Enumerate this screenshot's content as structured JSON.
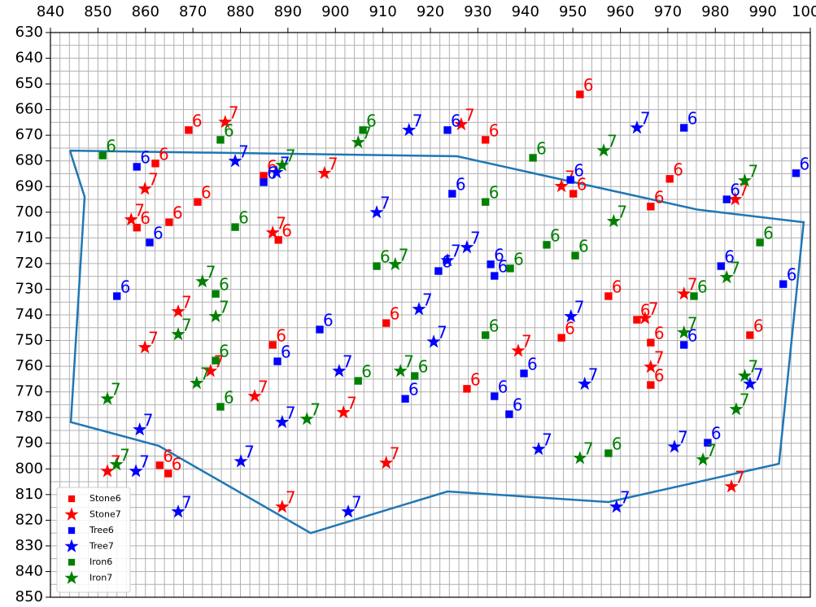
{
  "chart_data": {
    "type": "scatter",
    "xlim": [
      840,
      1000
    ],
    "ylim": [
      850,
      630
    ],
    "xticks": [
      840,
      850,
      860,
      870,
      880,
      890,
      900,
      910,
      920,
      930,
      940,
      950,
      960,
      970,
      980,
      990,
      1000
    ],
    "yticks": [
      630,
      640,
      650,
      660,
      670,
      680,
      690,
      700,
      710,
      720,
      730,
      740,
      750,
      760,
      770,
      780,
      790,
      800,
      810,
      820,
      830,
      840,
      850
    ],
    "xgrid": [
      840,
      842,
      844,
      846,
      848,
      850,
      852,
      854,
      856,
      858,
      860,
      862,
      864,
      866,
      868,
      870,
      872,
      874,
      876,
      878,
      880,
      882,
      884,
      886,
      888,
      890,
      892,
      894,
      896,
      898,
      900,
      902,
      904,
      906,
      908,
      910,
      912,
      914,
      916,
      918,
      920,
      922,
      924,
      926,
      928,
      930,
      932,
      934,
      936,
      938,
      940,
      942,
      944,
      946,
      948,
      950,
      952,
      954,
      956,
      958,
      960,
      962,
      964,
      966,
      968,
      970,
      972,
      974,
      976,
      978,
      980,
      982,
      984,
      986,
      988,
      990,
      992,
      994,
      996,
      998,
      1000
    ],
    "ygrid": [
      630,
      635,
      640,
      645,
      650,
      655,
      660,
      665,
      670,
      675,
      680,
      685,
      690,
      695,
      700,
      705,
      710,
      715,
      720,
      725,
      730,
      735,
      740,
      745,
      750,
      755,
      760,
      765,
      770,
      775,
      780,
      785,
      790,
      795,
      800,
      805,
      810,
      815,
      820,
      825,
      830,
      835,
      840,
      845,
      850
    ],
    "grid": true,
    "legend": "lower left",
    "boundary": {
      "color": "#1f77b4",
      "x": [
        844.1,
        847.2,
        844.3,
        862.8,
        894.8,
        923.6,
        957.5,
        993.4,
        998.6,
        976.3,
        925.6,
        844.1
      ],
      "y": [
        676,
        694,
        781.8,
        791,
        825,
        808.8,
        812.9,
        798,
        703.9,
        699,
        678.2,
        676
      ]
    },
    "series": [
      {
        "name": "Stone6",
        "color": "#ff0000",
        "marker": "square",
        "label": "6",
        "x": [
          951.5,
          869.1,
          931.6,
          862.1,
          884.9,
          871,
          858.2,
          865,
          888,
          910.7,
          957.5,
          950.1,
          966.4,
          970.4,
          963.5,
          947.6,
          966.4,
          886.8,
          987.3,
          966.4,
          927.7,
          863,
          864.8
        ],
        "y": [
          654.1,
          668,
          671.8,
          681,
          685.8,
          696,
          706,
          703.9,
          710.8,
          743.2,
          732.7,
          692.8,
          697.8,
          687,
          741.9,
          748.9,
          750.8,
          751.7,
          747.9,
          767.3,
          768.8,
          798.6,
          801.8
        ]
      },
      {
        "name": "Stone7",
        "color": "#ff0000",
        "marker": "star",
        "label": "7",
        "x": [
          876.8,
          859.9,
          857,
          866.9,
          859.9,
          873.7,
          883,
          886.8,
          897.7,
          901.7,
          910.7,
          888.8,
          852,
          926.5,
          938.5,
          947.6,
          973.4,
          965.2,
          966.4,
          984.2,
          983.4
        ],
        "y": [
          664.9,
          690.9,
          702.9,
          738.7,
          752.7,
          761.9,
          771.7,
          708,
          684.8,
          778,
          797.7,
          814.8,
          800.9,
          665.8,
          754,
          689.9,
          731.8,
          741.3,
          760.3,
          695,
          806.9
        ]
      },
      {
        "name": "Tree6",
        "color": "#0000ff",
        "marker": "square",
        "label": "6",
        "x": [
          858.2,
          860.9,
          854,
          884.9,
          887.8,
          896.7,
          914.7,
          923.6,
          924.6,
          921.7,
          932.7,
          933.5,
          933.5,
          936.6,
          939.7,
          949.5,
          973.4,
          982.4,
          981.2,
          997,
          994.3,
          973.4,
          978.4
        ],
        "y": [
          682.3,
          711.8,
          732.7,
          688.3,
          758.1,
          745.7,
          772.7,
          668,
          692.8,
          722.9,
          720.3,
          724.8,
          771.7,
          778.7,
          762.8,
          687.4,
          667.1,
          695,
          721,
          684.8,
          728,
          751.7,
          789.8
        ]
      },
      {
        "name": "Tree7",
        "color": "#0000ff",
        "marker": "star",
        "label": "7",
        "x": [
          878.9,
          887.6,
          908.7,
          915.5,
          923.6,
          927.7,
          917.6,
          920.7,
          900.8,
          888.8,
          858.8,
          858,
          880.1,
          866.9,
          902.7,
          942.8,
          952.5,
          949.6,
          963.5,
          971.4,
          959.2,
          987.3
        ],
        "y": [
          680.1,
          684.5,
          700.1,
          668,
          718.8,
          713.7,
          737.8,
          750.5,
          761.9,
          781.8,
          784.7,
          800.9,
          797.1,
          816.7,
          816.7,
          792.3,
          766.9,
          740.6,
          667.1,
          791.4,
          814.8,
          766.9
        ]
      },
      {
        "name": "Iron6",
        "color": "#008000",
        "marker": "square",
        "label": "6",
        "x": [
          851,
          875.8,
          878.9,
          905.8,
          908.7,
          874.8,
          874.8,
          875.8,
          904.8,
          916.7,
          931.6,
          931.6,
          941.6,
          944.5,
          950.5,
          936.8,
          975.5,
          989.4,
          957.5
        ],
        "y": [
          677.9,
          671.8,
          705.8,
          668,
          721,
          731.8,
          757.8,
          775.8,
          765.7,
          763.8,
          747.9,
          696,
          678.8,
          712.7,
          716.9,
          721.9,
          732.7,
          711.8,
          793.9
        ]
      },
      {
        "name": "Iron7",
        "color": "#008000",
        "marker": "star",
        "label": "7",
        "x": [
          888.8,
          904.8,
          872,
          874.8,
          866.9,
          870.8,
          852,
          853.9,
          894,
          912.6,
          913.7,
          956.5,
          958.6,
          973.4,
          986.2,
          982.4,
          986.2,
          984.4,
          977.4,
          951.5
        ],
        "y": [
          681.7,
          672.8,
          727,
          740.6,
          747.6,
          766.6,
          772.7,
          798.3,
          780.6,
          720.3,
          761.9,
          676,
          703.5,
          746.9,
          687.7,
          725.4,
          763.8,
          776.8,
          796.4,
          795.8
        ]
      }
    ]
  }
}
